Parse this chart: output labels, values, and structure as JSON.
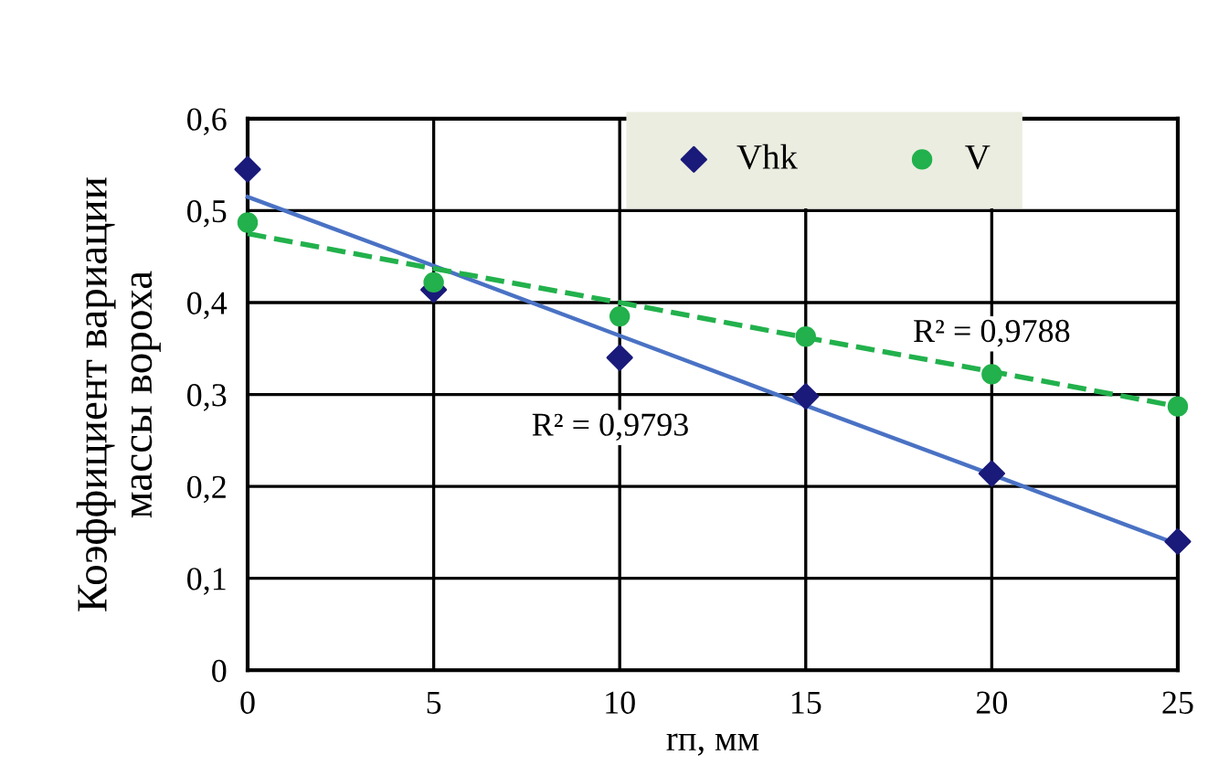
{
  "chart_data": {
    "type": "scatter",
    "xlabel": "rп, мм",
    "ylabel": "Коэффициент вариации\nмассы вороха",
    "x": [
      0,
      5,
      10,
      15,
      20,
      25
    ],
    "series": [
      {
        "name": "Vhk",
        "color": "#1a1a7a",
        "marker": "diamond",
        "values": [
          0.545,
          0.414,
          0.34,
          0.298,
          0.214,
          0.14
        ]
      },
      {
        "name": "V",
        "color": "#22b14c",
        "marker": "circle",
        "values": [
          0.487,
          0.422,
          0.385,
          0.363,
          0.322,
          0.287
        ]
      },
      {
        "type": "line",
        "color": "#4a72c4",
        "line_style": "solid",
        "marker": "none",
        "values": [
          0.515,
          0.44,
          0.364,
          0.288,
          0.213,
          0.137
        ]
      },
      {
        "type": "line",
        "color": "#22b14c",
        "line_style": "dashed",
        "marker": "none",
        "values": [
          0.475,
          0.437,
          0.4,
          0.362,
          0.325,
          0.287
        ]
      }
    ],
    "annotations": [
      "R² = 0,9793",
      "R² = 0,9788"
    ],
    "xlim": [
      0,
      25
    ],
    "xticks": [
      0,
      5,
      10,
      15,
      20,
      25
    ],
    "ylim": [
      0,
      0.6
    ],
    "yticks": [
      0,
      {
        "value": 0.1,
        "label": "0,1"
      },
      {
        "value": 0.2,
        "label": "0,2"
      },
      {
        "value": 0.3,
        "label": "0,3"
      },
      {
        "value": 0.4,
        "label": "0,4"
      },
      {
        "value": 0.5,
        "label": "0,5"
      },
      {
        "value": 0.6,
        "label": "0,6"
      }
    ],
    "grid": true,
    "legend": "top"
  }
}
